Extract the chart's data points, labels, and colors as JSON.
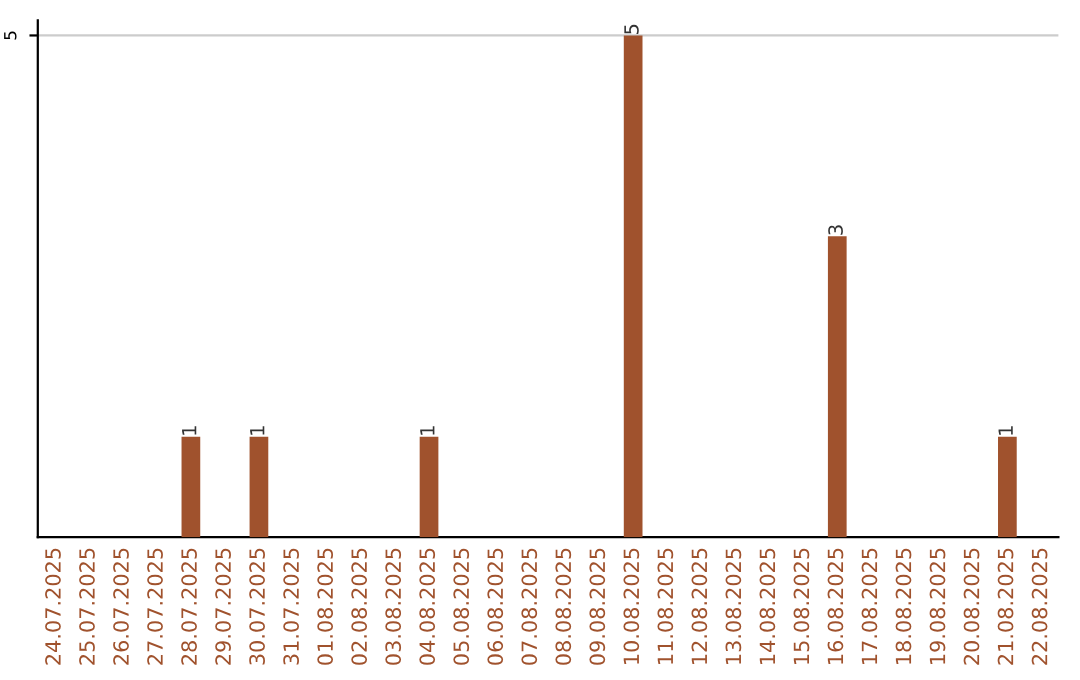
{
  "chart_data": {
    "type": "bar",
    "categories": [
      "24.07.2025",
      "25.07.2025",
      "26.07.2025",
      "27.07.2025",
      "28.07.2025",
      "29.07.2025",
      "30.07.2025",
      "31.07.2025",
      "01.08.2025",
      "02.08.2025",
      "03.08.2025",
      "04.08.2025",
      "05.08.2025",
      "06.08.2025",
      "07.08.2025",
      "08.08.2025",
      "09.08.2025",
      "10.08.2025",
      "11.08.2025",
      "12.08.2025",
      "13.08.2025",
      "14.08.2025",
      "15.08.2025",
      "16.08.2025",
      "17.08.2025",
      "18.08.2025",
      "19.08.2025",
      "20.08.2025",
      "21.08.2025",
      "22.08.2025"
    ],
    "values": [
      0,
      0,
      0,
      0,
      1,
      0,
      1,
      0,
      0,
      0,
      0,
      1,
      0,
      0,
      0,
      0,
      0,
      5,
      0,
      0,
      0,
      0,
      0,
      3,
      0,
      0,
      0,
      0,
      1,
      0
    ],
    "value_labels": [
      null,
      null,
      null,
      null,
      "1",
      null,
      "1",
      null,
      null,
      null,
      null,
      "1",
      null,
      null,
      null,
      null,
      null,
      "5",
      null,
      null,
      null,
      null,
      null,
      "3",
      null,
      null,
      null,
      null,
      "1",
      null
    ],
    "color": "#a0522d",
    "ylim": [
      0,
      5.15
    ],
    "yticks": [
      5
    ],
    "grid": "y"
  }
}
